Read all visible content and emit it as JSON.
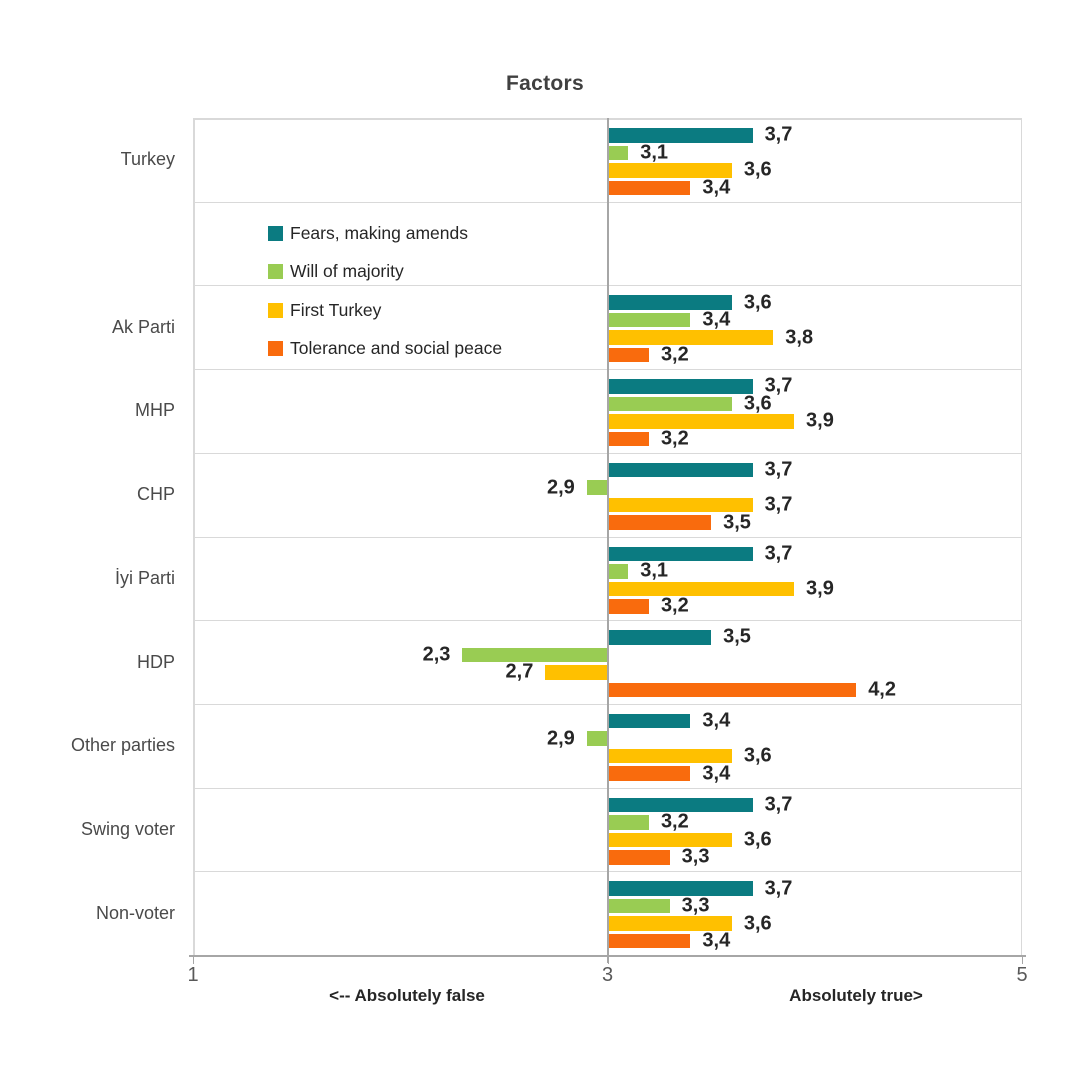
{
  "title": "Factors",
  "axis": {
    "left_caption": "<-- Absolutely false",
    "right_caption": "Absolutely true>",
    "ticks": [
      {
        "label": "1",
        "value": 1
      },
      {
        "label": "3",
        "value": 3
      },
      {
        "label": "5",
        "value": 5
      }
    ]
  },
  "colors": {
    "teal": "#0B7B81",
    "green": "#99CC53",
    "yellow": "#FFC000",
    "orange": "#F96B0D",
    "grid": "#d9d9d9",
    "axis": "#a6a6a6",
    "title_text": "#404040",
    "value_text": "#262626"
  },
  "chart_data": {
    "type": "bar",
    "orientation": "horizontal",
    "title": "Factors",
    "xlabel_left": "<-- Absolutely false",
    "xlabel_right": "Absolutely true>",
    "xlim": [
      1,
      5
    ],
    "value_base": 3,
    "grid": true,
    "legend_position": "inside-top-left",
    "decimal_separator": ",",
    "categories": [
      "Turkey",
      "",
      "Ak Parti",
      "MHP",
      "CHP",
      "İyi Parti",
      "HDP",
      "Other parties",
      "Swing voter",
      "Non-voter"
    ],
    "series": [
      {
        "name": "Fears, making amends",
        "color": "#0B7B81",
        "values": [
          3.7,
          null,
          3.6,
          3.7,
          3.7,
          3.7,
          3.5,
          3.4,
          3.7,
          3.7
        ]
      },
      {
        "name": "Will of majority",
        "color": "#99CC53",
        "values": [
          3.1,
          null,
          3.4,
          3.6,
          2.9,
          3.1,
          2.3,
          2.9,
          3.2,
          3.3
        ]
      },
      {
        "name": "First Turkey",
        "color": "#FFC000",
        "values": [
          3.6,
          null,
          3.8,
          3.9,
          3.7,
          3.9,
          2.7,
          3.6,
          3.6,
          3.6
        ]
      },
      {
        "name": "Tolerance and social peace",
        "color": "#F96B0D",
        "values": [
          3.4,
          null,
          3.2,
          3.2,
          3.5,
          3.2,
          4.2,
          3.4,
          3.3,
          3.4
        ]
      }
    ]
  }
}
